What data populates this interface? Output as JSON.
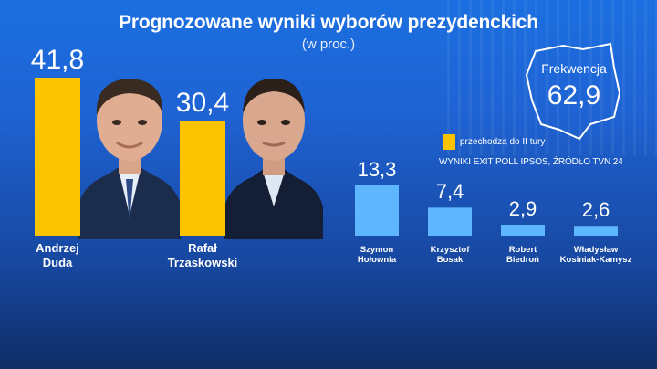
{
  "title": "Prognozowane wyniki wyborów prezydenckich",
  "subtitle": "(w proc.)",
  "legend": {
    "label": "przechodzą do II tury",
    "color": "#fcc400"
  },
  "source": "WYNIKI EXIT POLL IPSOS, ŹRÓDŁO TVN 24",
  "turnout": {
    "label": "Frekwencja",
    "value": "62,9"
  },
  "colors": {
    "major": "#fcc400",
    "minor": "#5eb6ff"
  },
  "chart_data": {
    "type": "bar",
    "title": "Prognozowane wyniki wyborów prezydenckich",
    "subtitle": "(w proc.)",
    "ylim": [
      0,
      45
    ],
    "categories": [
      "Andrzej Duda",
      "Rafał Trzaskowski",
      "Szymon Hołownia",
      "Krzysztof Bosak",
      "Robert Biedroń",
      "Władysław Kosiniak-Kamysz"
    ],
    "values": [
      41.8,
      30.4,
      13.3,
      7.4,
      2.9,
      2.6
    ],
    "value_labels": [
      "41,8",
      "30,4",
      "13,3",
      "7,4",
      "2,9",
      "2,6"
    ],
    "label_lines": [
      [
        "Andrzej",
        "Duda"
      ],
      [
        "Rafał",
        "Trzaskowski"
      ],
      [
        "Szymon",
        "Hołownia"
      ],
      [
        "Krzysztof",
        "Bosak"
      ],
      [
        "Robert",
        "Biedroń"
      ],
      [
        "Władysław",
        "Kosiniak-Kamysz"
      ]
    ],
    "second_round": [
      true,
      true,
      false,
      false,
      false,
      false
    ]
  }
}
